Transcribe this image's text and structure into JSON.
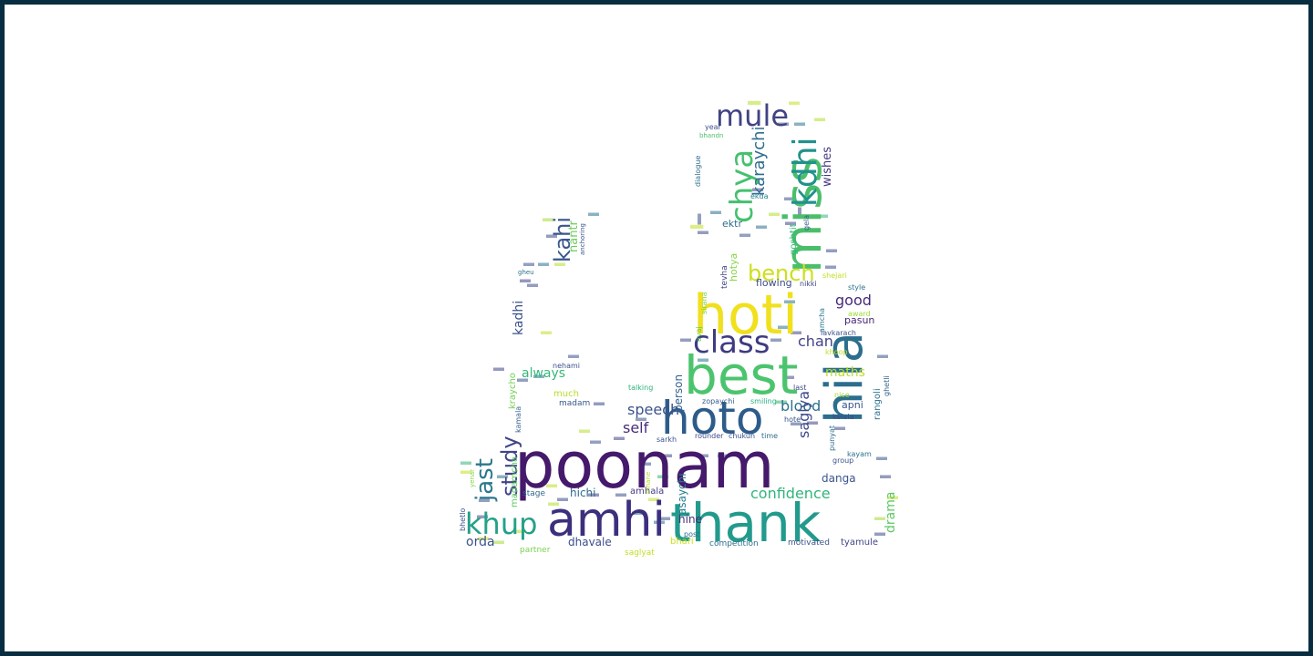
{
  "palette": {
    "frame": "#082d40",
    "background": "#ffffff"
  },
  "word_cloud": {
    "words": [
      {
        "text": "poonam",
        "color": "#45196b"
      },
      {
        "text": "amhi",
        "color": "#3b2f7e"
      },
      {
        "text": "thank",
        "color": "#229a8c"
      },
      {
        "text": "best",
        "color": "#4cc46e"
      },
      {
        "text": "hila",
        "color": "#2b6e8d"
      },
      {
        "text": "hoti",
        "color": "#f0e01e"
      },
      {
        "text": "hoto",
        "color": "#2d5c8a"
      },
      {
        "text": "miss",
        "color": "#4bbe6b"
      },
      {
        "text": "class",
        "color": "#3e3b82"
      },
      {
        "text": "mule",
        "color": "#414383"
      },
      {
        "text": "kdhi",
        "color": "#21918c"
      },
      {
        "text": "chya",
        "color": "#46c06f"
      },
      {
        "text": "khup",
        "color": "#25a088"
      },
      {
        "text": "bench",
        "color": "#cde01e"
      },
      {
        "text": "jast",
        "color": "#2a788e"
      },
      {
        "text": "study",
        "color": "#414487"
      },
      {
        "text": "kahi",
        "color": "#39568c"
      },
      {
        "text": "confidence",
        "color": "#31b57b"
      },
      {
        "text": "karaychi",
        "color": "#2e6d8e"
      },
      {
        "text": "chan",
        "color": "#414487"
      },
      {
        "text": "speech",
        "color": "#3b528b"
      },
      {
        "text": "self",
        "color": "#472d7b"
      },
      {
        "text": "maths",
        "color": "#b8de29"
      },
      {
        "text": "always",
        "color": "#35b779"
      },
      {
        "text": "blood",
        "color": "#2c728e"
      },
      {
        "text": "kadhi",
        "color": "#3b528b"
      },
      {
        "text": "orda",
        "color": "#3a548c"
      },
      {
        "text": "good",
        "color": "#472a7a"
      },
      {
        "text": "saglya",
        "color": "#3e4a89"
      },
      {
        "text": "drama",
        "color": "#5ec962"
      },
      {
        "text": "nantr",
        "color": "#6ccd5a"
      },
      {
        "text": "wishes",
        "color": "#443a83"
      },
      {
        "text": "danga",
        "color": "#3a538b"
      },
      {
        "text": "hichi",
        "color": "#306a8e"
      },
      {
        "text": "dhavale",
        "color": "#3d4d8a"
      },
      {
        "text": "ektr",
        "color": "#2f6c8e"
      },
      {
        "text": "pasun",
        "color": "#482878"
      },
      {
        "text": "flowing",
        "color": "#3e4c8a"
      },
      {
        "text": "rangoli",
        "color": "#2c738e"
      },
      {
        "text": "hotya",
        "color": "#86d549"
      },
      {
        "text": "goshtit",
        "color": "#35b779"
      },
      {
        "text": "asaychi",
        "color": "#277f8e"
      },
      {
        "text": "person",
        "color": "#33638d"
      },
      {
        "text": "madamcha",
        "color": "#5cc863"
      },
      {
        "text": "kraycho",
        "color": "#75d054"
      },
      {
        "text": "much",
        "color": "#b5de2b"
      },
      {
        "text": "madam",
        "color": "#39568c"
      },
      {
        "text": "apni",
        "color": "#3a548c"
      },
      {
        "text": "amhala",
        "color": "#443983"
      },
      {
        "text": "hine",
        "color": "#472d7b"
      },
      {
        "text": "bhari",
        "color": "#d0e11c"
      },
      {
        "text": "stage",
        "color": "#31678e"
      },
      {
        "text": "competition",
        "color": "#2e6e8e"
      },
      {
        "text": "motivated",
        "color": "#3b528b"
      },
      {
        "text": "tyamule",
        "color": "#414487"
      },
      {
        "text": "partner",
        "color": "#7ad151"
      },
      {
        "text": "saglyat",
        "color": "#c0df25"
      },
      {
        "text": "rounder",
        "color": "#3e4a89"
      },
      {
        "text": "chukun",
        "color": "#3b528b"
      },
      {
        "text": "time",
        "color": "#306a8e"
      },
      {
        "text": "zopaychi",
        "color": "#355f8d"
      },
      {
        "text": "smiling",
        "color": "#29af7f"
      },
      {
        "text": "talking",
        "color": "#2db27d"
      },
      {
        "text": "nehami",
        "color": "#3b528b"
      },
      {
        "text": "tevha",
        "color": "#414487"
      },
      {
        "text": "sirana",
        "color": "#7ad151"
      },
      {
        "text": "avaj",
        "color": "#5ec962"
      },
      {
        "text": "amcha",
        "color": "#2a768e"
      },
      {
        "text": "lavkarach",
        "color": "#3b528b"
      },
      {
        "text": "award",
        "color": "#a0da39"
      },
      {
        "text": "style",
        "color": "#2c738e"
      },
      {
        "text": "shejari",
        "color": "#c2df23"
      },
      {
        "text": "nikki",
        "color": "#404588"
      },
      {
        "text": "gela",
        "color": "#33638d"
      },
      {
        "text": "ekda",
        "color": "#277f8e"
      },
      {
        "text": "dialogue",
        "color": "#2e6e8e"
      },
      {
        "text": "year",
        "color": "#3d4e8a"
      },
      {
        "text": "bhandn",
        "color": "#4ac16d"
      },
      {
        "text": "anchoring",
        "color": "#3a548c"
      },
      {
        "text": "gheu",
        "color": "#2d708e"
      },
      {
        "text": "group",
        "color": "#3b528b"
      },
      {
        "text": "kayam",
        "color": "#2c728e"
      },
      {
        "text": "kelela",
        "color": "#3e4a89"
      },
      {
        "text": "punyat",
        "color": "#2e6d8e"
      },
      {
        "text": "ghetli",
        "color": "#33638d"
      },
      {
        "text": "hote",
        "color": "#3a548c"
      },
      {
        "text": "sarkh",
        "color": "#3b528b"
      },
      {
        "text": "kamala",
        "color": "#355f8d"
      },
      {
        "text": "bhetlo",
        "color": "#3b528b"
      },
      {
        "text": "yenar",
        "color": "#86d549"
      },
      {
        "text": "mhane",
        "color": "#b5de2b"
      },
      {
        "text": "last",
        "color": "#3e4a89"
      },
      {
        "text": "nice",
        "color": "#a5db36"
      },
      {
        "text": "khoop",
        "color": "#c2df23"
      },
      {
        "text": "post",
        "color": "#2e6e8e"
      }
    ]
  }
}
